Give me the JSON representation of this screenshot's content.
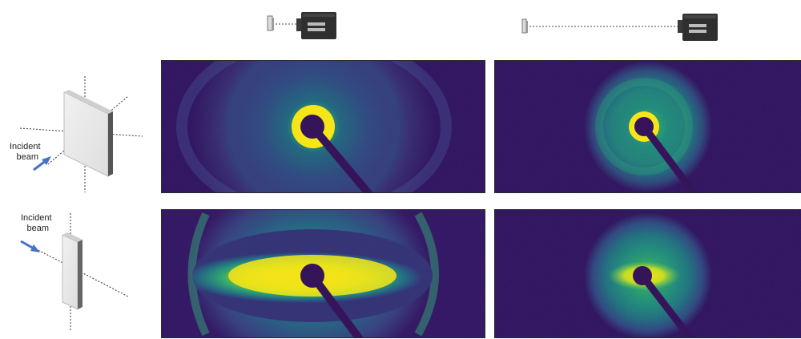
{
  "labels": {
    "incident_beam_1": [
      "Incident",
      "beam"
    ],
    "incident_beam_2": [
      "Incident",
      "beam"
    ]
  },
  "detectors": {
    "short": {
      "distance": "short"
    },
    "long": {
      "distance": "long"
    }
  },
  "colors": {
    "background_purple": "#3b1d6e",
    "mid_teal": "#2e9f8f",
    "bright_yellow": "#f6e619",
    "beam_stop": "#36145a",
    "arrow_blue": "#4472c4"
  },
  "panels": [
    {
      "id": "top-left",
      "pattern": "isotropic-ring",
      "sample": "face-on"
    },
    {
      "id": "top-right",
      "pattern": "isotropic-halo",
      "sample": "face-on"
    },
    {
      "id": "bottom-left",
      "pattern": "anisotropic-equatorial",
      "sample": "edge-on"
    },
    {
      "id": "bottom-right",
      "pattern": "weak-anisotropic-halo",
      "sample": "edge-on"
    }
  ]
}
